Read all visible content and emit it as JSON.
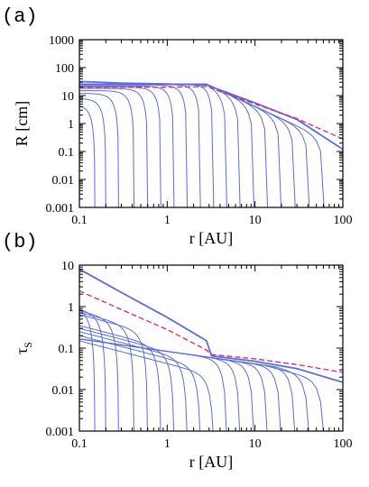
{
  "chart_data": [
    {
      "panel_label": "(a)",
      "type": "line",
      "xlabel": "r [AU]",
      "ylabel": "R [cm]",
      "xscale": "log",
      "yscale": "log",
      "xlim": [
        0.1,
        100
      ],
      "ylim": [
        0.001,
        1000
      ],
      "xticks": [
        "0.1",
        "1",
        "10",
        "100"
      ],
      "yticks": [
        "0.001",
        "0.01",
        "0.1",
        "1",
        "10",
        "100",
        "1000"
      ],
      "grid": false,
      "colors": {
        "solid": "#5a6ed8",
        "dashed": "#e0207a"
      },
      "dashed_curve": {
        "x": [
          0.1,
          0.3,
          1,
          2.8,
          10,
          30,
          100
        ],
        "y": [
          20,
          20,
          20,
          21,
          5,
          1.5,
          0.28
        ]
      },
      "envelope_curve": {
        "x": [
          0.1,
          0.3,
          1,
          2.8,
          10,
          30,
          100
        ],
        "y": [
          32,
          28,
          26,
          24,
          5.5,
          1.4,
          0.12
        ]
      },
      "solid_curves_drop_r": [
        0.15,
        0.2,
        0.28,
        0.42,
        0.6,
        0.85,
        1.2,
        1.7,
        2.4,
        3.4,
        4.8,
        6.8,
        9.8,
        14,
        20,
        29,
        42,
        62
      ],
      "solid_curves_plateau": [
        5,
        8,
        12,
        15,
        18,
        20,
        22,
        24,
        25,
        26,
        26,
        26,
        26,
        26,
        26,
        26,
        26,
        26
      ]
    },
    {
      "panel_label": "(b)",
      "type": "line",
      "xlabel": "r [AU]",
      "ylabel": "τ",
      "ylabel_sub": "S",
      "xscale": "log",
      "yscale": "log",
      "xlim": [
        0.1,
        100
      ],
      "ylim": [
        0.001,
        10
      ],
      "xticks": [
        "0.1",
        "1",
        "10",
        "100"
      ],
      "yticks": [
        "0.001",
        "0.01",
        "0.1",
        "1",
        "10"
      ],
      "grid": false,
      "colors": {
        "solid": "#5a6ed8",
        "dashed": "#e0207a"
      },
      "dashed_curve": {
        "x": [
          0.1,
          0.3,
          1,
          2.8,
          3.2,
          10,
          30,
          100
        ],
        "y": [
          2.4,
          0.85,
          0.28,
          0.09,
          0.07,
          0.055,
          0.04,
          0.026
        ]
      },
      "envelope_curve": {
        "x": [
          0.1,
          0.3,
          1,
          2.8,
          3.2,
          10,
          30,
          100
        ],
        "y": [
          8,
          2.2,
          0.55,
          0.15,
          0.065,
          0.048,
          0.032,
          0.015
        ]
      },
      "solid_curves_drop_r": [
        0.15,
        0.2,
        0.28,
        0.42,
        0.6,
        0.85,
        1.2,
        1.7,
        2.4,
        3.4,
        4.8,
        6.8,
        9.8,
        14,
        20,
        29,
        42,
        62
      ],
      "solid_curves_amplitude": [
        0.6,
        0.55,
        0.5,
        0.45,
        0.4,
        0.35,
        0.3,
        0.25,
        0.2,
        0.15,
        0.9,
        0.85,
        0.8,
        0.75,
        0.7,
        0.65,
        0.6,
        0.55
      ]
    }
  ]
}
